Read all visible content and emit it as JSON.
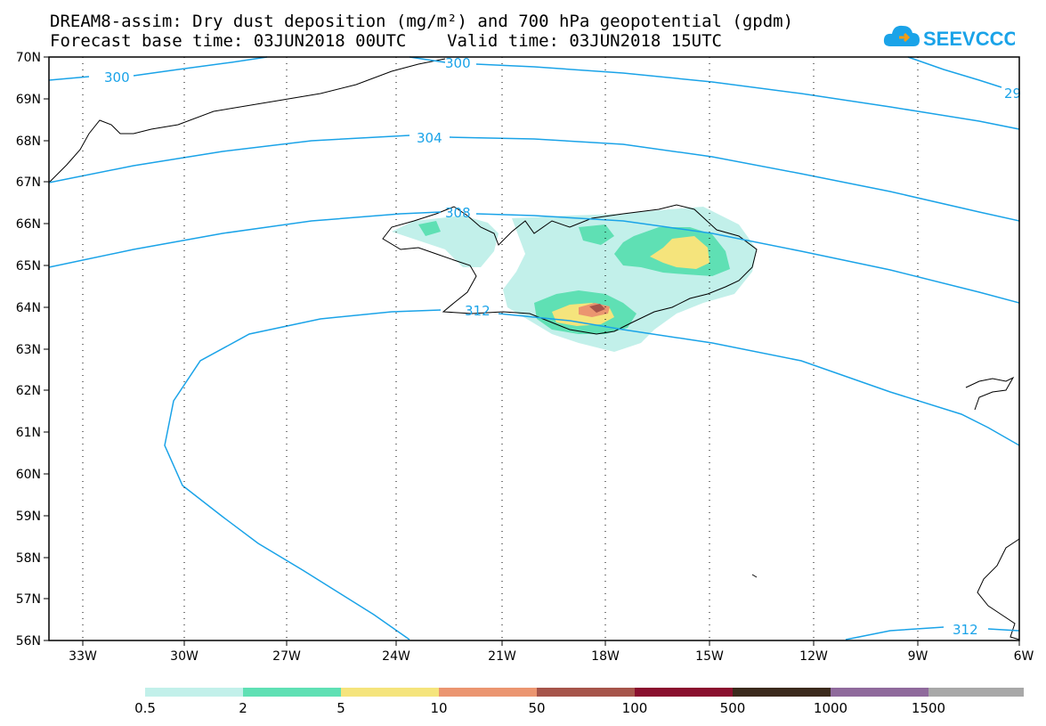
{
  "title_line1": "DREAM8-assim: Dry dust deposition (mg/m²) and 700 hPa geopotential (gpdm)",
  "title_line2": "Forecast base time: 03JUN2018 00UTC    Valid time: 03JUN2018 15UTC",
  "logo_text": "SEEVCCC",
  "lat_labels": [
    "70N",
    "69N",
    "68N",
    "67N",
    "66N",
    "65N",
    "64N",
    "63N",
    "62N",
    "61N",
    "60N",
    "59N",
    "58N",
    "57N",
    "56N"
  ],
  "lon_labels": [
    "33W",
    "30W",
    "27W",
    "24W",
    "21W",
    "18W",
    "15W",
    "12W",
    "9W",
    "6W"
  ],
  "contour_labels": [
    "300",
    "300",
    "29",
    "304",
    "308",
    "312",
    "312"
  ],
  "colorbar": {
    "colors": [
      "#c2f0ea",
      "#5fe0b4",
      "#f5e47c",
      "#eb9570",
      "#a6544a",
      "#8a0f2e",
      "#3b2a1c",
      "#8f6a9c",
      "#a8a8a8"
    ],
    "labels": [
      "0.5",
      "2",
      "5",
      "10",
      "50",
      "100",
      "500",
      "1000",
      "1500"
    ]
  },
  "colors": {
    "contour": "#1aa3e8",
    "coast": "#000000",
    "logo": "#1aa3e8"
  }
}
